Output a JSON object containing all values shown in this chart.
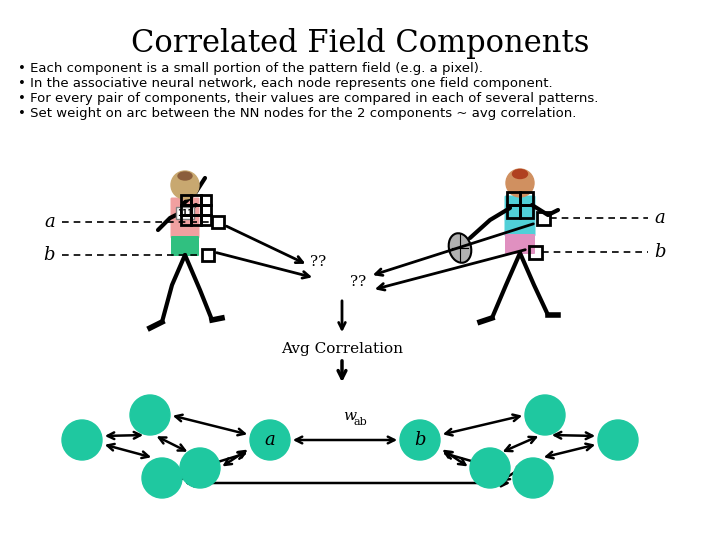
{
  "title": "Correlated Field Components",
  "title_fontsize": 22,
  "bullet_points": [
    "Each component is a small portion of the pattern field (e.g. a pixel).",
    "In the associative neural network, each node represents one field component.",
    "For every pair of components, their values are compared in each of several patterns.",
    "Set weight on arc between the NN nodes for the 2 components ~ avg correlation."
  ],
  "bullet_fontsize": 9.5,
  "bg_color": "#ffffff",
  "node_color": "#1fc8a0",
  "avg_corr_text": "Avg Correlation",
  "wab_text": "w",
  "wab_sub": "ab"
}
